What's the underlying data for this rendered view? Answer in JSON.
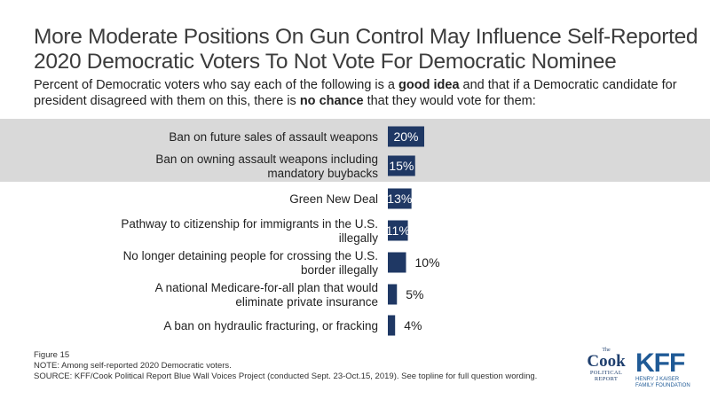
{
  "title": {
    "line1": "More Moderate Positions On Gun Control May Influence Self-Reported",
    "line2": "2020 Democratic Voters To Not Vote For Democratic Nominee"
  },
  "subtitle": {
    "part1": "Percent of Democratic voters who say each of the following is a ",
    "bold1": "good idea",
    "part2": " and that if a Democratic candidate for president disagreed with them on this, there is ",
    "bold2": "no chance",
    "part3": " that they would vote for them:"
  },
  "chart_data": {
    "type": "bar",
    "orientation": "horizontal",
    "categories": [
      [
        "Ban on future sales of assault weapons"
      ],
      [
        "Ban on owning assault weapons including",
        "mandatory buybacks"
      ],
      [
        "Green New Deal"
      ],
      [
        "Pathway to citizenship for immigrants in the U.S.",
        "illegally"
      ],
      [
        "No longer detaining people for crossing the U.S.",
        "border illegally"
      ],
      [
        "A national Medicare-for-all plan that would",
        "eliminate private insurance"
      ],
      [
        "A ban on hydraulic fracturing, or fracking"
      ]
    ],
    "values": [
      20,
      15,
      13,
      11,
      10,
      5,
      4
    ],
    "value_labels": [
      "20%",
      "15%",
      "13%",
      "11%",
      "10%",
      "5%",
      "4%"
    ],
    "highlighted_rows": [
      0,
      1
    ],
    "colors": {
      "bar": "#1f3864",
      "highlight": "#d9d9d9",
      "label_inside": "#ffffff",
      "label_outside": "#222222"
    },
    "xlim": [
      0,
      100
    ],
    "grid": false,
    "legend": "none"
  },
  "footer": {
    "figure": "Figure 15",
    "note": "NOTE: Among self-reported 2020 Democratic voters.",
    "source": "SOURCE: KFF/Cook Political Report Blue Wall Voices Project (conducted Sept. 23-Oct.15, 2019). See topline for full question wording."
  },
  "logos": {
    "cook_the": "The",
    "cook_name": "Cook",
    "cook_line1": "POLITICAL",
    "cook_line2": "REPORT",
    "kff_name": "KFF",
    "kff_line1": "HENRY J KAISER",
    "kff_line2": "FAMILY FOUNDATION"
  }
}
